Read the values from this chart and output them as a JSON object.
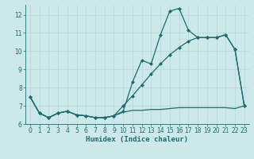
{
  "xlabel": "Humidex (Indice chaleur)",
  "bg_color": "#cce8e8",
  "grid_color": "#b8d8d8",
  "line_color": "#1a6e6e",
  "xlim": [
    -0.5,
    23.5
  ],
  "ylim": [
    6.0,
    12.55
  ],
  "yticks": [
    6,
    7,
    8,
    9,
    10,
    11,
    12
  ],
  "xticks": [
    0,
    1,
    2,
    3,
    4,
    5,
    6,
    7,
    8,
    9,
    10,
    11,
    12,
    13,
    14,
    15,
    16,
    17,
    18,
    19,
    20,
    21,
    22,
    23
  ],
  "line1_x": [
    0,
    1,
    2,
    3,
    4,
    5,
    6,
    7,
    8,
    9,
    10,
    11,
    12,
    13,
    14,
    15,
    16,
    17,
    18,
    19,
    20,
    21,
    22,
    23
  ],
  "line1_y": [
    7.5,
    6.6,
    6.35,
    6.6,
    6.7,
    6.5,
    6.45,
    6.35,
    6.35,
    6.45,
    6.7,
    8.3,
    9.5,
    9.3,
    10.9,
    12.2,
    12.35,
    11.15,
    10.75,
    10.75,
    10.75,
    10.9,
    10.1,
    7.0
  ],
  "line2_x": [
    0,
    1,
    2,
    3,
    4,
    5,
    6,
    7,
    8,
    9,
    10,
    11,
    12,
    13,
    14,
    15,
    16,
    17,
    18,
    19,
    20,
    21,
    22,
    23
  ],
  "line2_y": [
    7.5,
    6.6,
    6.35,
    6.6,
    6.7,
    6.5,
    6.45,
    6.35,
    6.35,
    6.45,
    7.0,
    7.55,
    8.15,
    8.75,
    9.3,
    9.8,
    10.2,
    10.55,
    10.75,
    10.75,
    10.75,
    10.9,
    10.1,
    7.0
  ],
  "line3_x": [
    0,
    1,
    2,
    3,
    4,
    5,
    6,
    7,
    8,
    9,
    10,
    11,
    12,
    13,
    14,
    15,
    16,
    17,
    18,
    19,
    20,
    21,
    22,
    23
  ],
  "line3_y": [
    7.5,
    6.6,
    6.35,
    6.6,
    6.7,
    6.5,
    6.45,
    6.35,
    6.35,
    6.45,
    6.65,
    6.75,
    6.75,
    6.8,
    6.8,
    6.85,
    6.9,
    6.9,
    6.9,
    6.9,
    6.9,
    6.9,
    6.85,
    7.0
  ]
}
